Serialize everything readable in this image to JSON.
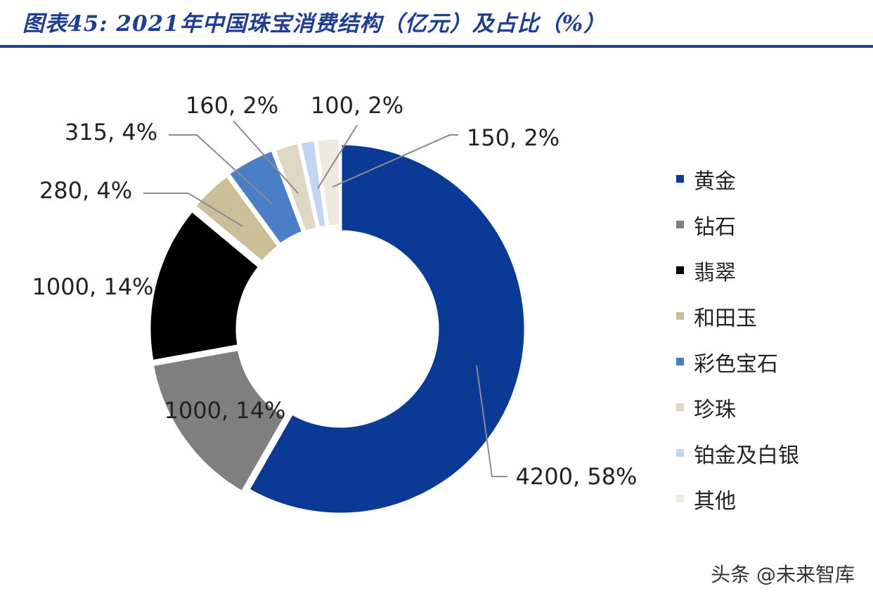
{
  "title": "图表45: 2021年中国珠宝消费结构（亿元）及占比（%）",
  "watermark": "头条 @未来智库",
  "chart_data": {
    "type": "pie",
    "variant": "donut",
    "title": "图表45: 2021年中国珠宝消费结构（亿元）及占比（%）",
    "legend_position": "right",
    "slices": [
      {
        "name": "黄金",
        "value": 4200,
        "percent": 58,
        "label": "4200, 58%",
        "color": "#0a3a96"
      },
      {
        "name": "钻石",
        "value": 1000,
        "percent": 14,
        "label": "1000, 14%",
        "color": "#7f7f7f"
      },
      {
        "name": "翡翠",
        "value": 1000,
        "percent": 14,
        "label": "1000, 14%",
        "color": "#000000"
      },
      {
        "name": "和田玉",
        "value": 280,
        "percent": 4,
        "label": "280, 4%",
        "color": "#cbbf9a"
      },
      {
        "name": "彩色宝石",
        "value": 315,
        "percent": 4,
        "label": "315, 4%",
        "color": "#4a7ec7"
      },
      {
        "name": "珍珠",
        "value": 160,
        "percent": 2,
        "label": "160, 2%",
        "color": "#ddd7c3"
      },
      {
        "name": "铂金及白银",
        "value": 100,
        "percent": 2,
        "label": "100, 2%",
        "color": "#c3d5f0"
      },
      {
        "name": "其他",
        "value": 150,
        "percent": 2,
        "label": "150, 2%",
        "color": "#ece9df"
      }
    ]
  }
}
